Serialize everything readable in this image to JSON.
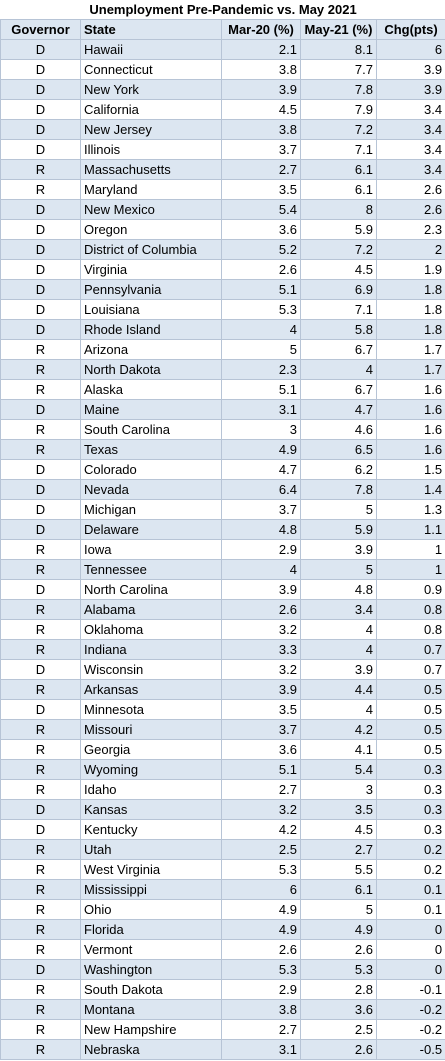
{
  "title": "Unemployment Pre-Pandemic vs. May 2021",
  "table": {
    "header": [
      "Governor",
      "State",
      "Mar-20 (%)",
      "May-21 (%)",
      "Chg(pts)"
    ],
    "rows": [
      [
        "D",
        "Hawaii",
        2.1,
        8.1,
        6
      ],
      [
        "D",
        "Connecticut",
        3.8,
        7.7,
        3.9
      ],
      [
        "D",
        "New York",
        3.9,
        7.8,
        3.9
      ],
      [
        "D",
        "California",
        4.5,
        7.9,
        3.4
      ],
      [
        "D",
        "New Jersey",
        3.8,
        7.2,
        3.4
      ],
      [
        "D",
        "Illinois",
        3.7,
        7.1,
        3.4
      ],
      [
        "R",
        "Massachusetts",
        2.7,
        6.1,
        3.4
      ],
      [
        "R",
        "Maryland",
        3.5,
        6.1,
        2.6
      ],
      [
        "D",
        "New Mexico",
        5.4,
        8,
        2.6
      ],
      [
        "D",
        "Oregon",
        3.6,
        5.9,
        2.3
      ],
      [
        "D",
        "District of Columbia",
        5.2,
        7.2,
        2
      ],
      [
        "D",
        "Virginia",
        2.6,
        4.5,
        1.9
      ],
      [
        "D",
        "Pennsylvania",
        5.1,
        6.9,
        1.8
      ],
      [
        "D",
        "Louisiana",
        5.3,
        7.1,
        1.8
      ],
      [
        "D",
        "Rhode Island",
        4,
        5.8,
        1.8
      ],
      [
        "R",
        "Arizona",
        5,
        6.7,
        1.7
      ],
      [
        "R",
        "North Dakota",
        2.3,
        4,
        1.7
      ],
      [
        "R",
        "Alaska",
        5.1,
        6.7,
        1.6
      ],
      [
        "D",
        "Maine",
        3.1,
        4.7,
        1.6
      ],
      [
        "R",
        "South Carolina",
        3,
        4.6,
        1.6
      ],
      [
        "R",
        "Texas",
        4.9,
        6.5,
        1.6
      ],
      [
        "D",
        "Colorado",
        4.7,
        6.2,
        1.5
      ],
      [
        "D",
        "Nevada",
        6.4,
        7.8,
        1.4
      ],
      [
        "D",
        "Michigan",
        3.7,
        5,
        1.3
      ],
      [
        "D",
        "Delaware",
        4.8,
        5.9,
        1.1
      ],
      [
        "R",
        "Iowa",
        2.9,
        3.9,
        1
      ],
      [
        "R",
        "Tennessee",
        4,
        5,
        1
      ],
      [
        "D",
        "North Carolina",
        3.9,
        4.8,
        0.9
      ],
      [
        "R",
        "Alabama",
        2.6,
        3.4,
        0.8
      ],
      [
        "R",
        "Oklahoma",
        3.2,
        4,
        0.8
      ],
      [
        "R",
        "Indiana",
        3.3,
        4,
        0.7
      ],
      [
        "D",
        "Wisconsin",
        3.2,
        3.9,
        0.7
      ],
      [
        "R",
        "Arkansas",
        3.9,
        4.4,
        0.5
      ],
      [
        "D",
        "Minnesota",
        3.5,
        4,
        0.5
      ],
      [
        "R",
        "Missouri",
        3.7,
        4.2,
        0.5
      ],
      [
        "R",
        "Georgia",
        3.6,
        4.1,
        0.5
      ],
      [
        "R",
        "Wyoming",
        5.1,
        5.4,
        0.3
      ],
      [
        "R",
        "Idaho",
        2.7,
        3,
        0.3
      ],
      [
        "D",
        "Kansas",
        3.2,
        3.5,
        0.3
      ],
      [
        "D",
        "Kentucky",
        4.2,
        4.5,
        0.3
      ],
      [
        "R",
        "Utah",
        2.5,
        2.7,
        0.2
      ],
      [
        "R",
        "West Virginia",
        5.3,
        5.5,
        0.2
      ],
      [
        "R",
        "Mississippi",
        6,
        6.1,
        0.1
      ],
      [
        "R",
        "Ohio",
        4.9,
        5,
        0.1
      ],
      [
        "R",
        "Florida",
        4.9,
        4.9,
        0
      ],
      [
        "R",
        "Vermont",
        2.6,
        2.6,
        0
      ],
      [
        "D",
        "Washington",
        5.3,
        5.3,
        0
      ],
      [
        "R",
        "South Dakota",
        2.9,
        2.8,
        -0.1
      ],
      [
        "R",
        "Montana",
        3.8,
        3.6,
        -0.2
      ],
      [
        "R",
        "New Hampshire",
        2.7,
        2.5,
        -0.2
      ],
      [
        "R",
        "Nebraska",
        3.1,
        2.6,
        -0.5
      ]
    ]
  }
}
